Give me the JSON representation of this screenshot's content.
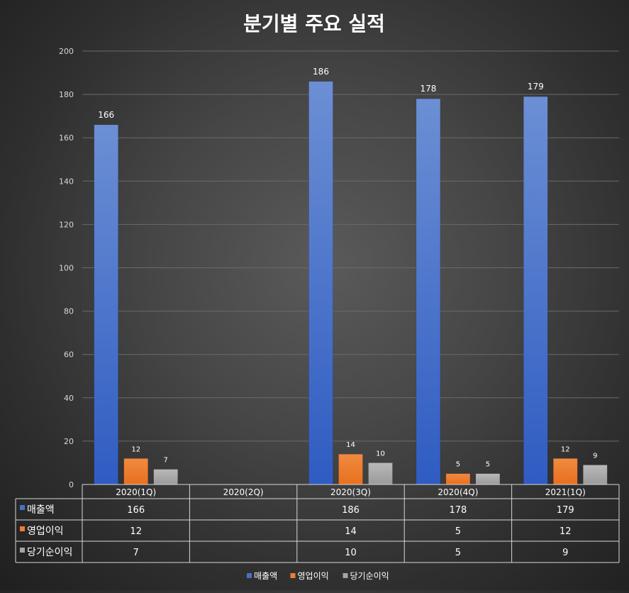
{
  "chart_data": {
    "type": "bar",
    "title": "분기별 주요 실적",
    "categories": [
      "2020(1Q)",
      "2020(2Q)",
      "2020(3Q)",
      "2020(4Q)",
      "2021(1Q)"
    ],
    "series": [
      {
        "name": "매출액",
        "values": [
          166,
          null,
          186,
          178,
          179
        ],
        "color": "#4472c4"
      },
      {
        "name": "영업이익",
        "values": [
          12,
          null,
          14,
          5,
          12
        ],
        "color": "#ed7d31"
      },
      {
        "name": "당기순이익",
        "values": [
          7,
          null,
          10,
          5,
          9
        ],
        "color": "#a5a5a5"
      }
    ],
    "ylim": [
      0,
      200
    ],
    "yticks": [
      0,
      20,
      40,
      60,
      80,
      100,
      120,
      140,
      160,
      180,
      200
    ],
    "grid": true,
    "legend": "bottom",
    "data_table": true
  }
}
